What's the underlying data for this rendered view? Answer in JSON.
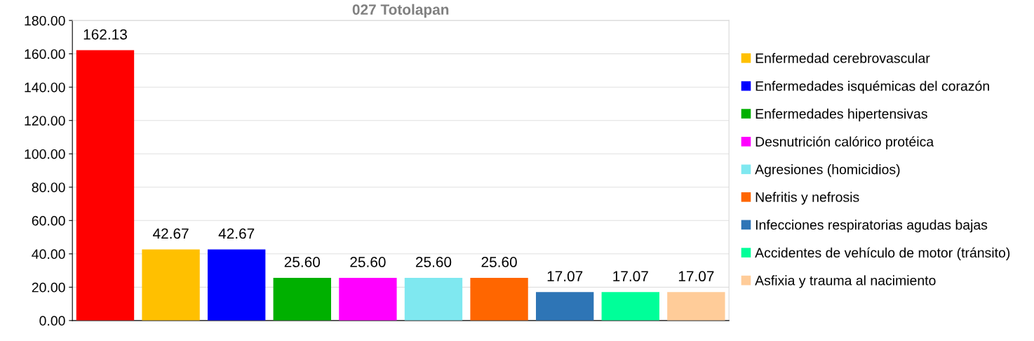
{
  "chart_data": {
    "type": "bar",
    "title": "027 Totolapan",
    "categories": [
      null
    ],
    "series": [
      {
        "color": "#ff0000",
        "values": [
          162.13
        ]
      },
      {
        "name": "Enfermedad cerebrovascular",
        "color": "#ffc000",
        "values": [
          42.67
        ]
      },
      {
        "name": "Enfermedades isquémicas del corazón",
        "color": "#0000ff",
        "values": [
          42.67
        ]
      },
      {
        "name": "Enfermedades hipertensivas",
        "color": "#00b000",
        "values": [
          25.6
        ],
        "value_labels": [
          "25.60"
        ]
      },
      {
        "name": "Desnutrición calórico protéica",
        "color": "#ff00ff",
        "values": [
          25.6
        ],
        "value_labels": [
          "25.60"
        ]
      },
      {
        "name": "Agresiones (homicidios)",
        "color": "#7fe8f0",
        "values": [
          25.6
        ],
        "value_labels": [
          "25.60"
        ]
      },
      {
        "name": "Nefritis y nefrosis",
        "color": "#ff6600",
        "values": [
          25.6
        ],
        "value_labels": [
          "25.60"
        ]
      },
      {
        "name": "Infecciones respiratorias agudas bajas",
        "color": "#2e75b6",
        "values": [
          17.07
        ]
      },
      {
        "name": "Accidentes de vehículo de motor (tránsito)",
        "color": "#00ff99",
        "values": [
          17.07
        ]
      },
      {
        "name": "Asfixia y trauma al nacimiento",
        "color": "#ffcc99",
        "values": [
          17.07
        ]
      }
    ],
    "ylim": [
      0,
      180
    ],
    "yticks": [
      {
        "value": 0,
        "label": "0.00"
      },
      {
        "value": 20,
        "label": "20.00"
      },
      {
        "value": 40,
        "label": "40.00"
      },
      {
        "value": 60,
        "label": "60.00"
      },
      {
        "value": 80,
        "label": "80.00"
      },
      {
        "value": 100,
        "label": "100.00"
      },
      {
        "value": 120,
        "label": "120.00"
      },
      {
        "value": 140,
        "label": "140.00"
      },
      {
        "value": 160,
        "label": "160.00"
      },
      {
        "value": 180,
        "label": "180.00"
      }
    ],
    "data_labels": true,
    "grid": "y",
    "legend": "right"
  }
}
